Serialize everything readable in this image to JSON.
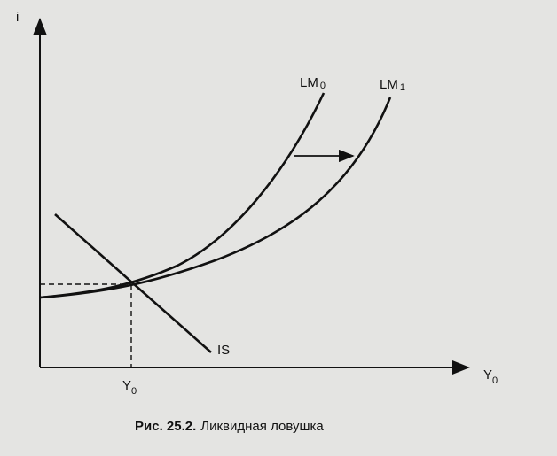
{
  "diagram": {
    "y_axis_label": "i",
    "x_axis_label": {
      "text": "Y",
      "subscript": "0"
    },
    "curves": [
      {
        "text": "LM",
        "subscript": "0"
      },
      {
        "text": "LM",
        "subscript": "1"
      },
      {
        "text": "IS"
      }
    ],
    "equilibrium_label": {
      "text": "Y",
      "subscript": "0"
    },
    "caption": {
      "number": "Рис. 25.2.",
      "title": "Ликвидная ловушка"
    }
  }
}
